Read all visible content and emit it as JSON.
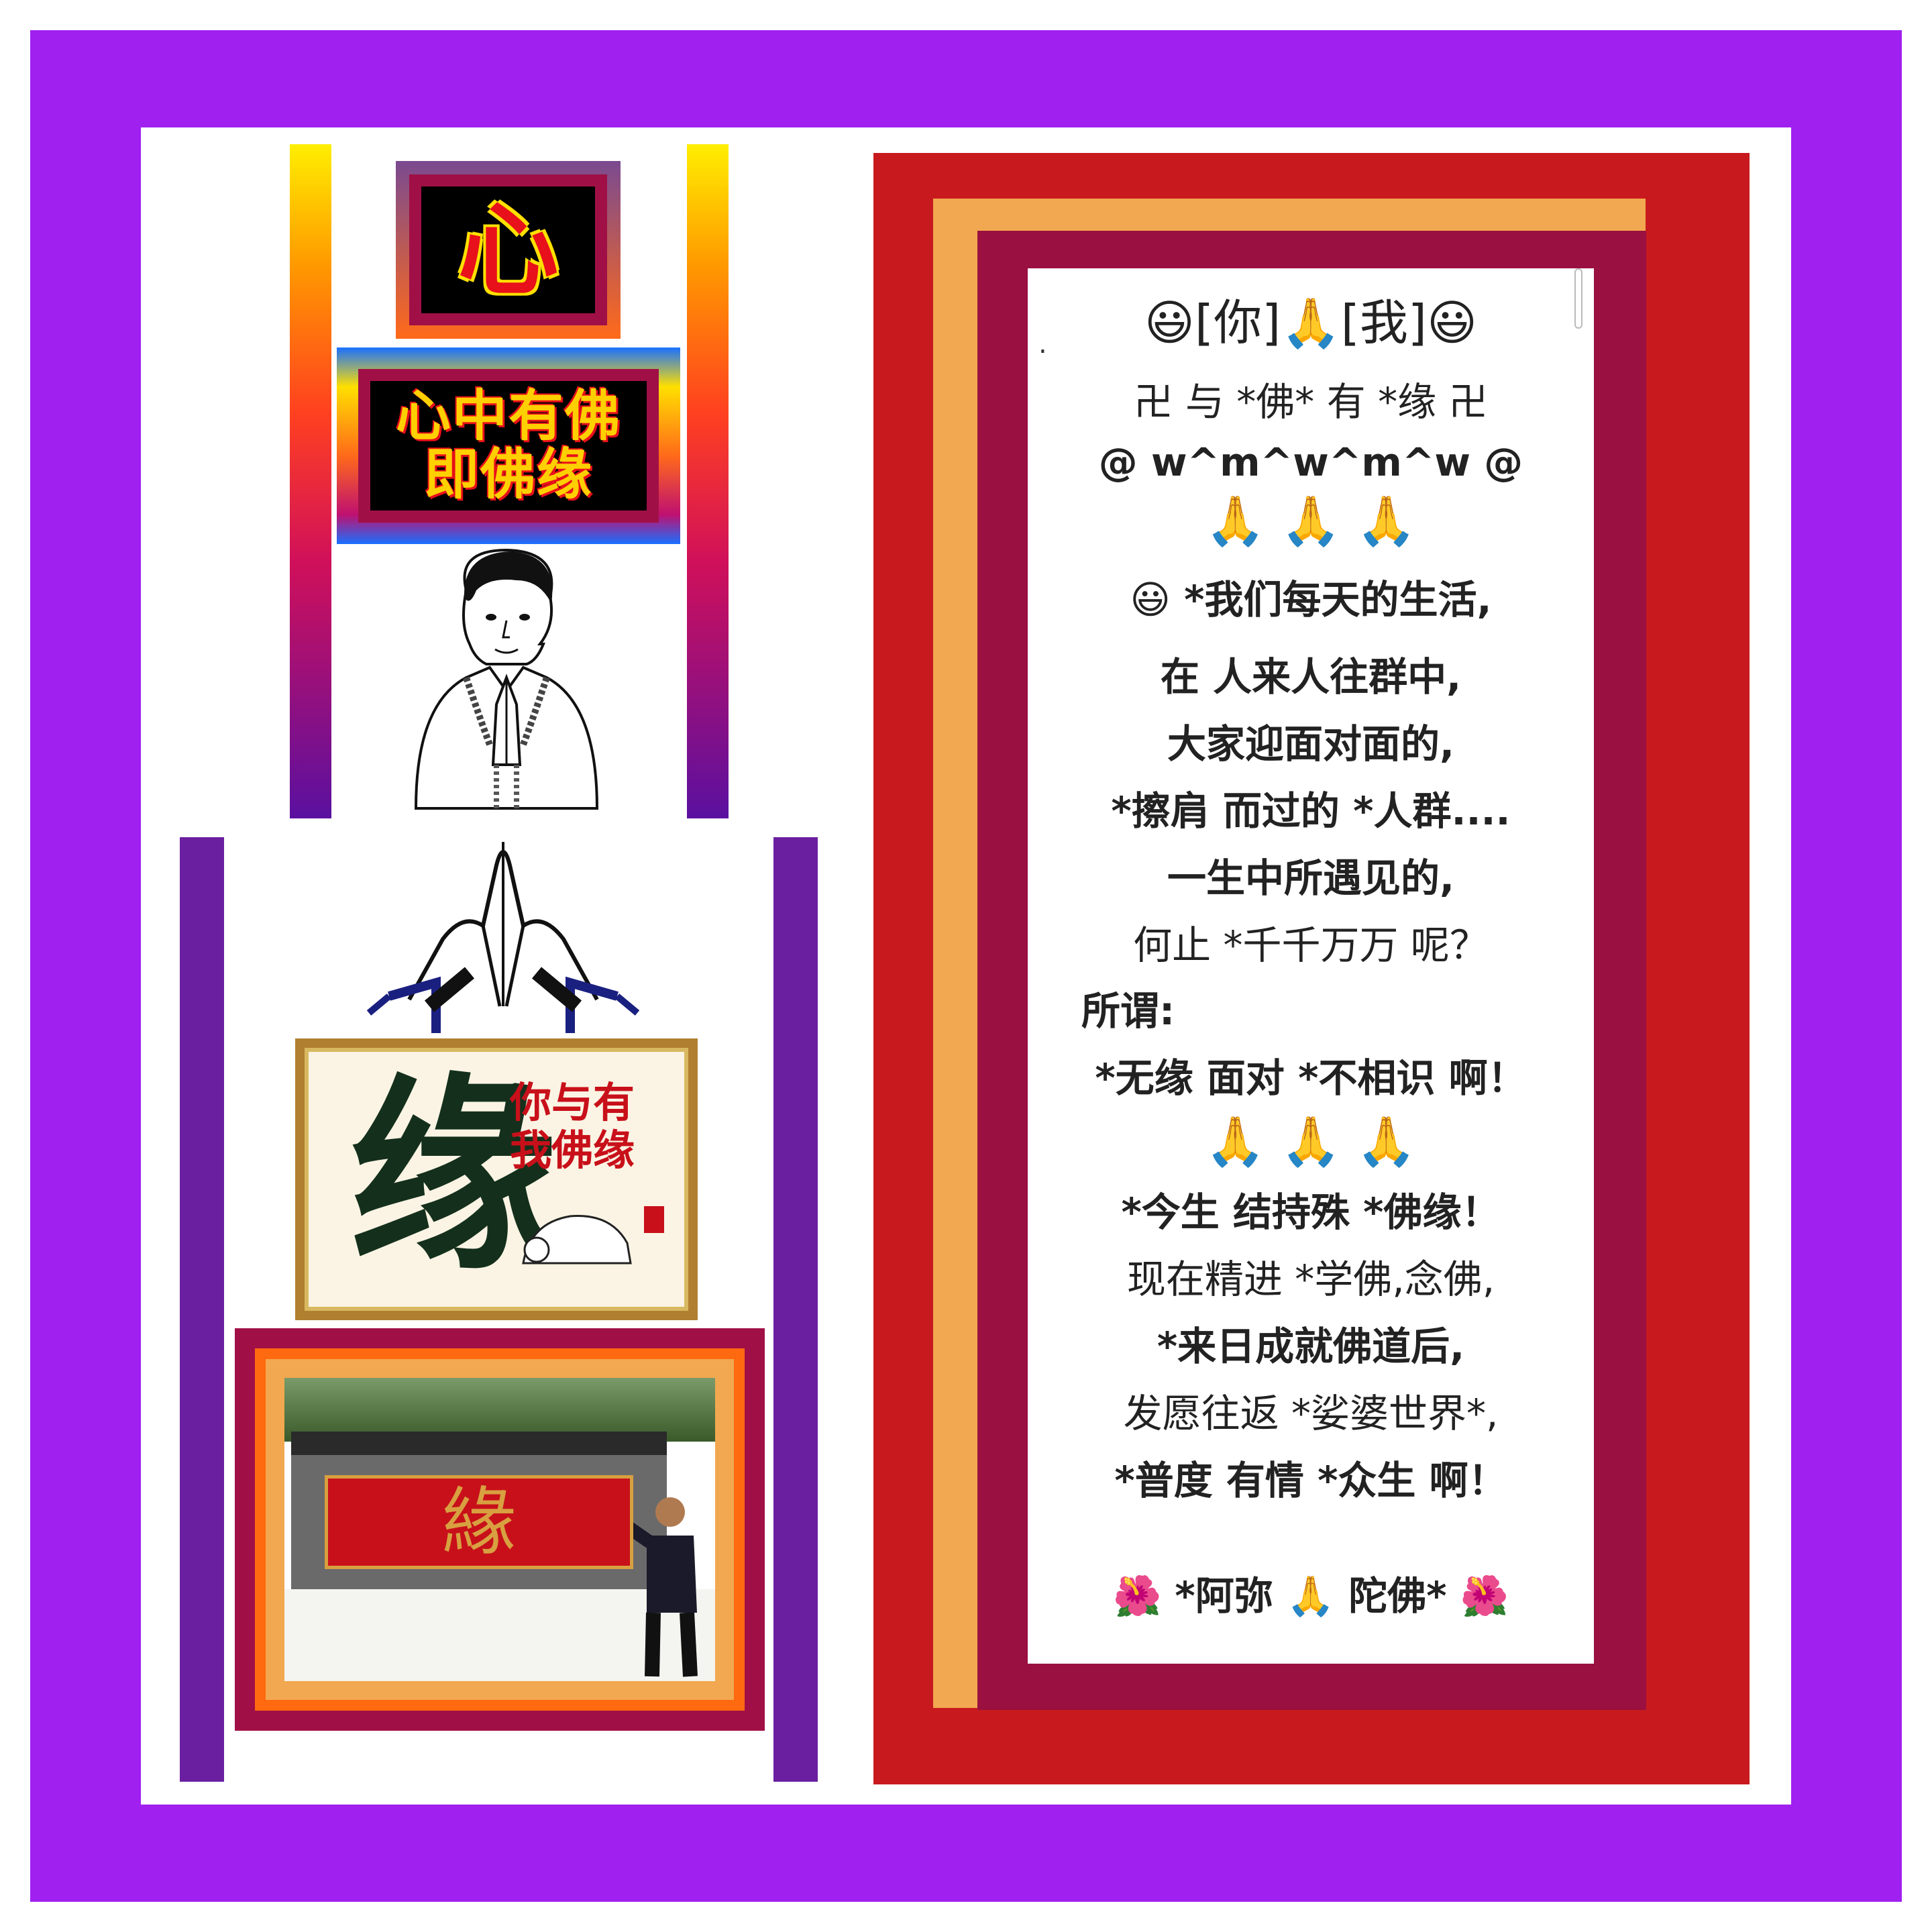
{
  "left_panel": {
    "xin_char": "心",
    "title_line1": "心中有佛",
    "title_line2": "即佛缘",
    "painting_big_char": "缘",
    "painting_red_line1": "你与有",
    "painting_red_line2": "我佛缘",
    "photo_sign_char": "緣"
  },
  "card": {
    "dot": ".",
    "lines": [
      "😃[你]🙏[我]😃",
      "卍 与 *佛* 有 *缘 卍",
      "@ w^m^w^m^w @",
      "🙏   🙏   🙏",
      "😃 *我们每天的生活,",
      "在 人来人往群中,",
      "大家迎面对面的,",
      "*擦肩 而过的 *人群....",
      "一生中所遇见的,",
      "何止 *千千万万 呢？",
      "所谓:",
      "*无缘 面对 *不相识 啊！",
      "🙏   🙏   🙏",
      "*今生 结持殊 *佛缘！",
      "现在精进 *学佛,念佛,",
      "*来日成就佛道后,",
      "发愿往返 *娑婆世界*,",
      "*普度 有情 *众生 啊！",
      "🌺 *阿弥 🙏 陀佛* 🌺"
    ]
  },
  "colors": {
    "outer_frame": "#a020f0",
    "card_outer": "#c81a1e",
    "card_middle": "#f2a850",
    "card_inner": "#9a1040",
    "left_bars": "#6a1fa0"
  }
}
